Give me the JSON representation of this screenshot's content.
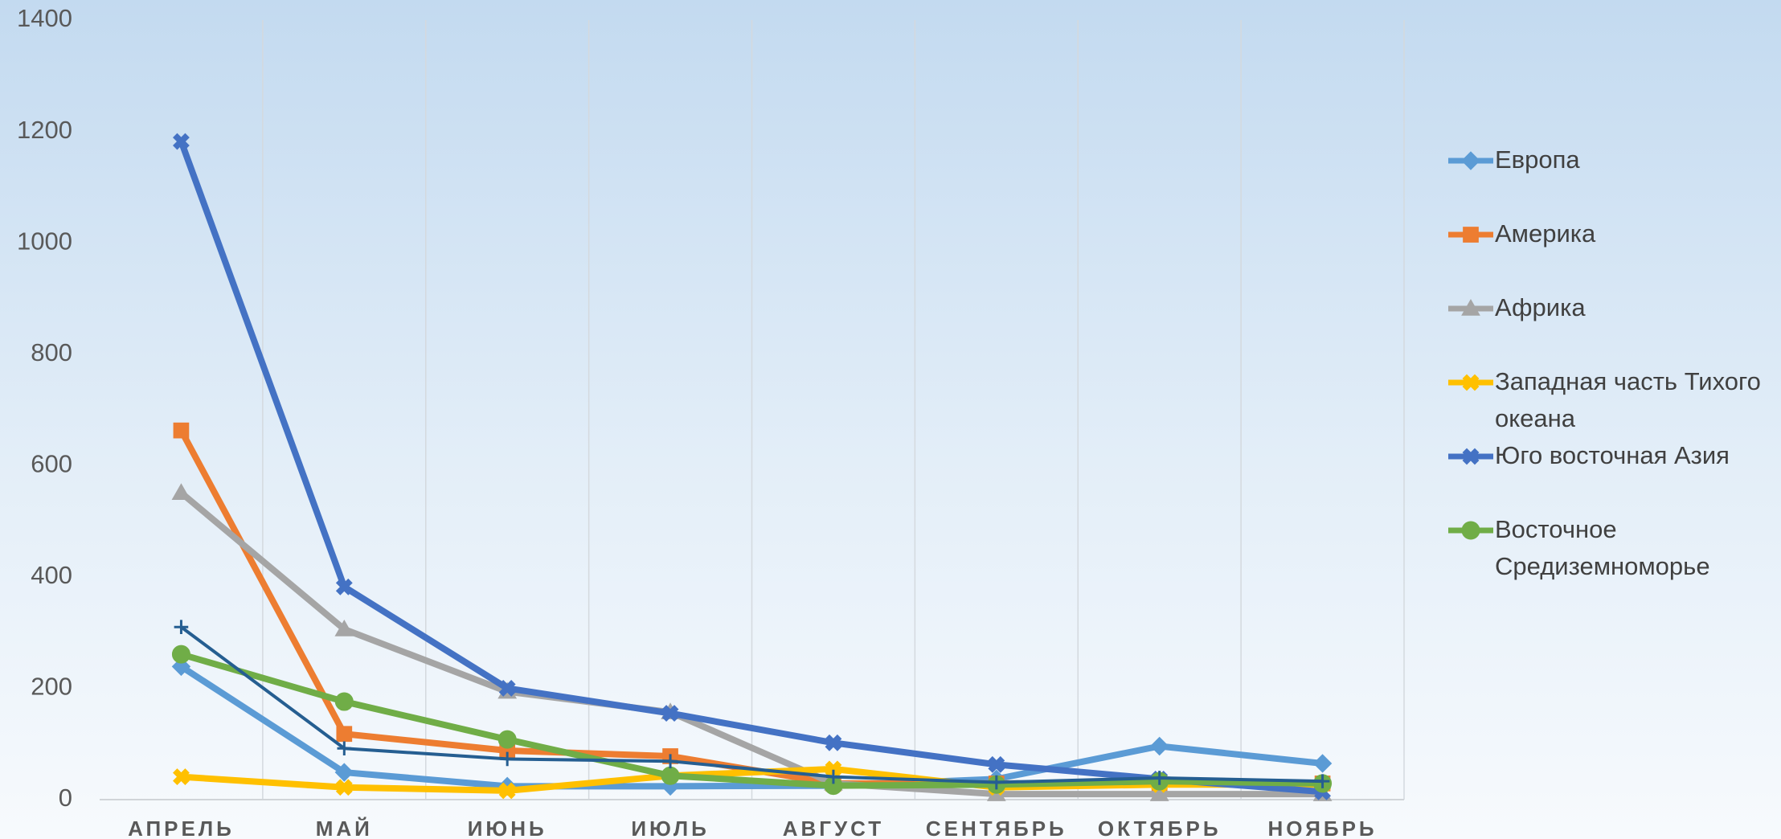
{
  "chart_data": {
    "type": "line",
    "categories": [
      "АПРЕЛЬ",
      "МАЙ",
      "ИЮНЬ",
      "ИЮЛЬ",
      "АВГУСТ",
      "СЕНТЯБРЬ",
      "ОКТЯБРЬ",
      "НОЯБРЬ"
    ],
    "ylim": [
      0,
      1400
    ],
    "yticks": [
      0,
      200,
      400,
      600,
      800,
      1000,
      1200,
      1400
    ],
    "grid": true,
    "legend": "right",
    "series": [
      {
        "name": "Европа",
        "color": "#5b9bd5",
        "marker": "diamond",
        "values": [
          239,
          49,
          24,
          24,
          25,
          37,
          96,
          65
        ]
      },
      {
        "name": "Америка",
        "color": "#ed7d31",
        "marker": "square",
        "values": [
          663,
          118,
          88,
          78,
          29,
          29,
          29,
          29
        ]
      },
      {
        "name": "Африка",
        "color": "#a5a5a5",
        "marker": "triangle",
        "values": [
          551,
          306,
          194,
          157,
          29,
          10,
          10,
          10
        ]
      },
      {
        "name": "Западная часть Тихого океана",
        "color": "#ffc000",
        "marker": "x",
        "values": [
          41,
          22,
          16,
          43,
          55,
          22,
          27,
          27
        ]
      },
      {
        "name": "Юго восточная Азия",
        "color": "#4472c4",
        "marker": "x",
        "values": [
          1182,
          382,
          200,
          155,
          102,
          63,
          37,
          14
        ]
      },
      {
        "name": "Восточное Средиземноморье",
        "color": "#70ad47",
        "marker": "circle",
        "values": [
          261,
          176,
          108,
          43,
          25,
          27,
          33,
          29
        ]
      },
      {
        "color": "#255e91",
        "marker": "plus",
        "thin": true,
        "values": [
          310,
          92,
          73,
          69,
          41,
          31,
          39,
          33
        ]
      }
    ]
  }
}
